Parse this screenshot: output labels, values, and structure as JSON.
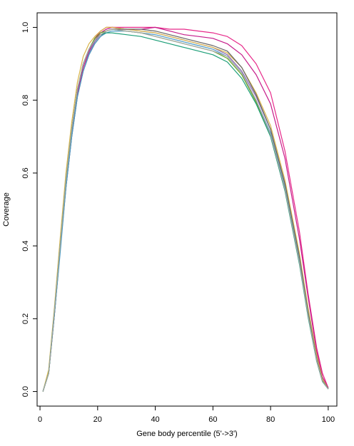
{
  "chart_data": {
    "type": "line",
    "title": "",
    "xlabel": "Gene body percentile (5'->3')",
    "ylabel": "Coverage",
    "xlim": [
      1,
      100
    ],
    "ylim": [
      0,
      1
    ],
    "x_ticks": [
      0,
      20,
      40,
      60,
      80,
      100
    ],
    "y_ticks": [
      0.0,
      0.2,
      0.4,
      0.6,
      0.8,
      1.0
    ],
    "x_tick_labels": [
      "0",
      "20",
      "40",
      "60",
      "80",
      "100"
    ],
    "y_tick_labels": [
      "0.0",
      "0.2",
      "0.4",
      "0.6",
      "0.8",
      "1.0"
    ],
    "grid": false,
    "legend": false,
    "x": [
      1,
      3,
      5,
      7,
      9,
      11,
      13,
      15,
      17,
      19,
      21,
      23,
      25,
      30,
      35,
      40,
      45,
      50,
      55,
      60,
      65,
      70,
      75,
      80,
      85,
      90,
      93,
      96,
      98,
      100
    ],
    "series": [
      {
        "color": "#e7298a",
        "values": [
          0.0,
          0.05,
          0.22,
          0.4,
          0.58,
          0.72,
          0.83,
          0.9,
          0.94,
          0.97,
          0.99,
          1.0,
          1.0,
          1.0,
          1.0,
          1.0,
          0.995,
          0.995,
          0.99,
          0.985,
          0.975,
          0.95,
          0.9,
          0.82,
          0.66,
          0.44,
          0.27,
          0.12,
          0.05,
          0.01
        ]
      },
      {
        "color": "#c51b8a",
        "values": [
          0.0,
          0.05,
          0.21,
          0.39,
          0.57,
          0.71,
          0.82,
          0.89,
          0.935,
          0.965,
          0.985,
          0.995,
          1.0,
          0.995,
          0.995,
          1.0,
          0.99,
          0.98,
          0.975,
          0.97,
          0.955,
          0.925,
          0.87,
          0.79,
          0.64,
          0.42,
          0.26,
          0.11,
          0.04,
          0.01
        ]
      },
      {
        "color": "#8c6bb1",
        "values": [
          0.0,
          0.05,
          0.21,
          0.39,
          0.56,
          0.7,
          0.81,
          0.88,
          0.93,
          0.96,
          0.98,
          0.99,
          0.995,
          0.995,
          0.99,
          0.985,
          0.975,
          0.965,
          0.955,
          0.945,
          0.925,
          0.88,
          0.81,
          0.72,
          0.57,
          0.37,
          0.22,
          0.09,
          0.03,
          0.008
        ]
      },
      {
        "color": "#d9b54a",
        "values": [
          0.0,
          0.06,
          0.23,
          0.42,
          0.6,
          0.74,
          0.85,
          0.92,
          0.955,
          0.975,
          0.99,
          1.0,
          1.0,
          0.995,
          0.99,
          0.985,
          0.975,
          0.965,
          0.955,
          0.945,
          0.93,
          0.89,
          0.82,
          0.73,
          0.58,
          0.38,
          0.23,
          0.1,
          0.035,
          0.008
        ]
      },
      {
        "color": "#666666",
        "values": [
          0.0,
          0.05,
          0.21,
          0.39,
          0.56,
          0.7,
          0.81,
          0.88,
          0.925,
          0.955,
          0.975,
          0.99,
          0.995,
          0.995,
          0.995,
          0.99,
          0.98,
          0.97,
          0.96,
          0.95,
          0.935,
          0.89,
          0.815,
          0.72,
          0.57,
          0.37,
          0.22,
          0.09,
          0.03,
          0.008
        ]
      },
      {
        "color": "#4d9ac7",
        "values": [
          0.0,
          0.05,
          0.21,
          0.38,
          0.56,
          0.7,
          0.81,
          0.88,
          0.925,
          0.955,
          0.975,
          0.985,
          0.99,
          0.99,
          0.985,
          0.98,
          0.97,
          0.96,
          0.95,
          0.94,
          0.92,
          0.875,
          0.8,
          0.71,
          0.56,
          0.36,
          0.21,
          0.085,
          0.028,
          0.007
        ]
      },
      {
        "color": "#66a61e",
        "values": [
          0.0,
          0.05,
          0.22,
          0.4,
          0.58,
          0.72,
          0.83,
          0.9,
          0.94,
          0.97,
          0.985,
          0.99,
          0.995,
          0.99,
          0.985,
          0.975,
          0.965,
          0.955,
          0.945,
          0.935,
          0.915,
          0.87,
          0.795,
          0.705,
          0.555,
          0.355,
          0.21,
          0.085,
          0.028,
          0.007
        ]
      },
      {
        "color": "#1b9e77",
        "values": [
          0.0,
          0.05,
          0.22,
          0.4,
          0.58,
          0.72,
          0.83,
          0.9,
          0.94,
          0.965,
          0.98,
          0.985,
          0.985,
          0.98,
          0.975,
          0.965,
          0.955,
          0.945,
          0.935,
          0.925,
          0.905,
          0.86,
          0.79,
          0.7,
          0.55,
          0.35,
          0.205,
          0.083,
          0.027,
          0.007
        ]
      },
      {
        "color": "#a6a6a6",
        "values": [
          0.0,
          0.05,
          0.22,
          0.4,
          0.58,
          0.72,
          0.83,
          0.9,
          0.94,
          0.965,
          0.98,
          0.99,
          0.995,
          0.99,
          0.985,
          0.975,
          0.965,
          0.955,
          0.945,
          0.935,
          0.92,
          0.875,
          0.8,
          0.705,
          0.555,
          0.355,
          0.21,
          0.085,
          0.028,
          0.007
        ]
      }
    ]
  }
}
